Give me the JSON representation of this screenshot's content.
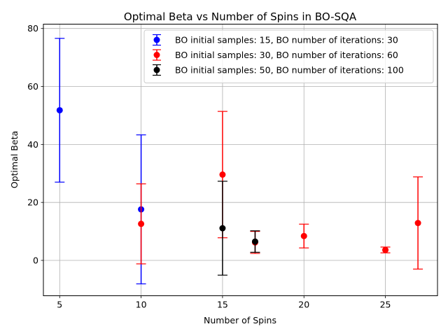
{
  "chart_data": {
    "type": "scatter",
    "title": "Optimal Beta vs Number of Spins in BO-SQA",
    "xlabel": "Number of Spins",
    "ylabel": "Optimal Beta",
    "xlim": [
      4.0,
      28.2
    ],
    "ylim": [
      -12.2,
      81.5
    ],
    "xticks": [
      5,
      10,
      15,
      20,
      25
    ],
    "yticks": [
      0,
      20,
      40,
      60,
      80
    ],
    "grid": true,
    "legend_position": "top-right",
    "series": [
      {
        "name": "BO initial samples: 15, BO number of iterations: 30",
        "color": "#0000ff",
        "points": [
          {
            "x": 5,
            "y": 51.8,
            "yerr": 24.8
          },
          {
            "x": 10,
            "y": 17.6,
            "yerr": 25.7
          }
        ]
      },
      {
        "name": "BO initial samples: 30, BO number of iterations: 60",
        "color": "#ff0000",
        "points": [
          {
            "x": 10,
            "y": 12.6,
            "yerr": 13.8
          },
          {
            "x": 15,
            "y": 29.6,
            "yerr": 21.8
          },
          {
            "x": 17,
            "y": 6.2,
            "yerr": 3.8
          },
          {
            "x": 20,
            "y": 8.4,
            "yerr": 4.1
          },
          {
            "x": 25,
            "y": 3.6,
            "yerr": 1.0
          },
          {
            "x": 27,
            "y": 12.9,
            "yerr": 15.9
          }
        ]
      },
      {
        "name": "BO initial samples: 50, BO number of iterations: 100",
        "color": "#000000",
        "points": [
          {
            "x": 15,
            "y": 11.1,
            "yerr": 16.2
          },
          {
            "x": 17,
            "y": 6.5,
            "yerr": 3.7
          }
        ]
      }
    ]
  }
}
